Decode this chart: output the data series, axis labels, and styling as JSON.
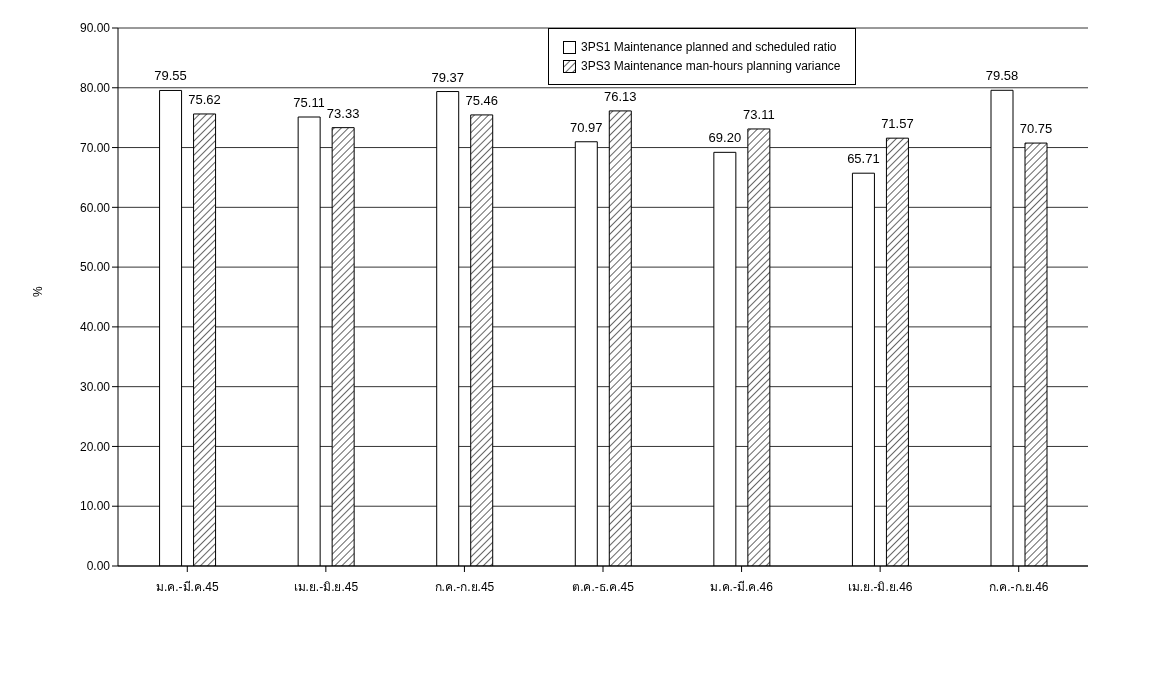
{
  "chart_data": {
    "type": "bar",
    "ylabel": "%",
    "categories": [
      "ม.ค.-มี.ค.45",
      "เม.ย.-มิ.ย.45",
      "ก.ค.-ก.ย.45",
      "ต.ค.-ธ.ค.45",
      "ม.ค.-มี.ค.46",
      "เม.ย.-มิ.ย.46",
      "ก.ค.-ก.ย.46"
    ],
    "series": [
      {
        "name": "3PS1 Maintenance planned and scheduled ratio",
        "color": "#ffffff",
        "values": [
          79.55,
          75.11,
          79.37,
          70.97,
          69.2,
          65.71,
          79.58
        ],
        "value_labels": [
          "79.55",
          "75.11",
          "79.37",
          "70.97",
          "69.20",
          "65.71",
          "79.58"
        ]
      },
      {
        "name": "3PS3 Maintenance man-hours planning variance",
        "color": "#000000",
        "type": "bar",
        "values": [
          75.62,
          73.33,
          75.46,
          76.13,
          73.11,
          71.57,
          70.75
        ],
        "value_labels": [
          "75.62",
          "73.33",
          "75.46",
          "76.13",
          "73.11",
          "71.57",
          "70.75"
        ]
      }
    ],
    "ylim": [
      0,
      90
    ],
    "yticks": [
      {
        "value": 0,
        "label": "0.00"
      },
      {
        "value": 10,
        "label": "10.00"
      },
      {
        "value": 20,
        "label": "20.00"
      },
      {
        "value": 30,
        "label": "30.00"
      },
      {
        "value": 40,
        "label": "40.00"
      },
      {
        "value": 50,
        "label": "50.00"
      },
      {
        "value": 60,
        "label": "60.00"
      },
      {
        "value": 70,
        "label": "70.00"
      },
      {
        "value": 80,
        "label": "80.00"
      },
      {
        "value": 90,
        "label": "90.00"
      }
    ],
    "grid": "y",
    "legend": "top right"
  }
}
